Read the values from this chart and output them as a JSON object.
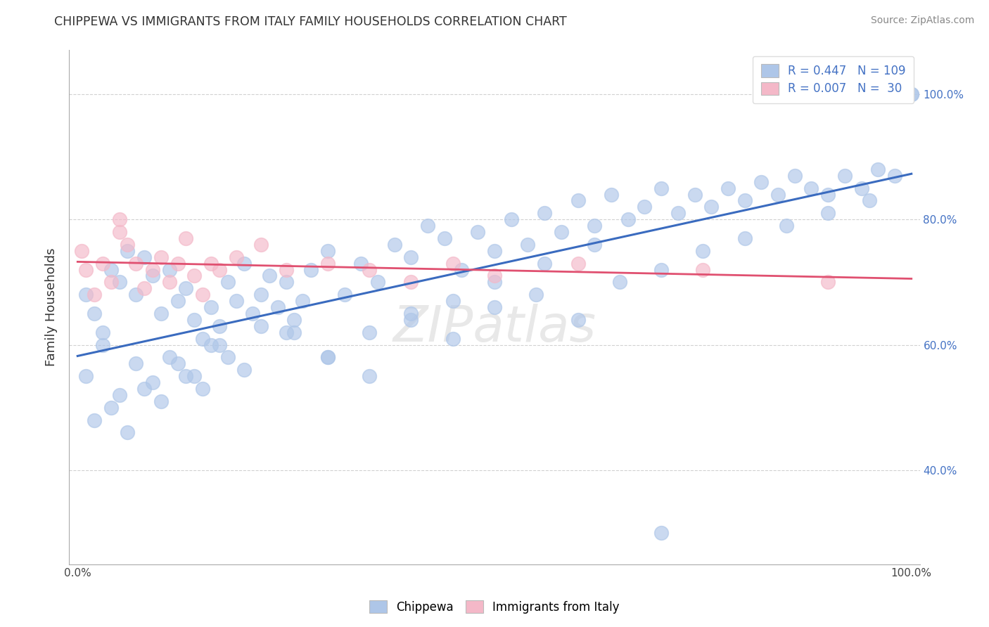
{
  "title": "CHIPPEWA VS IMMIGRANTS FROM ITALY FAMILY HOUSEHOLDS CORRELATION CHART",
  "source_text": "Source: ZipAtlas.com",
  "ylabel": "Family Households",
  "blue_scatter_color": "#aec6e8",
  "pink_scatter_color": "#f4b8c8",
  "blue_line_color": "#3a6bbf",
  "pink_line_color": "#e05070",
  "grid_color": "#cccccc",
  "blue_R": 0.447,
  "blue_N": 109,
  "pink_R": 0.007,
  "pink_N": 30,
  "legend_text_color": "#4472c4",
  "bottom_legend": [
    "Chippewa",
    "Immigrants from Italy"
  ],
  "xlim_min": 0,
  "xlim_max": 100,
  "ylim_min": 25,
  "ylim_max": 107,
  "yticks": [
    40,
    60,
    80,
    100
  ],
  "xticks": [
    0,
    100
  ],
  "blue_x": [
    1,
    2,
    3,
    4,
    5,
    6,
    7,
    8,
    9,
    10,
    11,
    12,
    13,
    14,
    15,
    16,
    17,
    18,
    19,
    20,
    21,
    22,
    23,
    24,
    25,
    26,
    27,
    28,
    30,
    32,
    34,
    36,
    38,
    40,
    42,
    44,
    46,
    48,
    50,
    52,
    54,
    56,
    58,
    60,
    62,
    64,
    66,
    68,
    70,
    72,
    74,
    76,
    78,
    80,
    82,
    84,
    86,
    88,
    90,
    92,
    94,
    96,
    98,
    100,
    1,
    3,
    5,
    7,
    9,
    11,
    13,
    15,
    17,
    20,
    25,
    30,
    35,
    40,
    45,
    50,
    55,
    60,
    65,
    70,
    75,
    80,
    85,
    90,
    95,
    100,
    2,
    4,
    6,
    8,
    10,
    12,
    14,
    16,
    18,
    22,
    26,
    30,
    35,
    40,
    45,
    50,
    56,
    62,
    70
  ],
  "blue_y": [
    68,
    65,
    62,
    72,
    70,
    75,
    68,
    74,
    71,
    65,
    72,
    67,
    69,
    64,
    61,
    66,
    63,
    70,
    67,
    73,
    65,
    68,
    71,
    66,
    70,
    64,
    67,
    72,
    75,
    68,
    73,
    70,
    76,
    74,
    79,
    77,
    72,
    78,
    75,
    80,
    76,
    81,
    78,
    83,
    79,
    84,
    80,
    82,
    85,
    81,
    84,
    82,
    85,
    83,
    86,
    84,
    87,
    85,
    84,
    87,
    85,
    88,
    87,
    100,
    55,
    60,
    52,
    57,
    54,
    58,
    55,
    53,
    60,
    56,
    62,
    58,
    55,
    64,
    61,
    66,
    68,
    64,
    70,
    72,
    75,
    77,
    79,
    81,
    83,
    100,
    48,
    50,
    46,
    53,
    51,
    57,
    55,
    60,
    58,
    63,
    62,
    58,
    62,
    65,
    67,
    70,
    73,
    76,
    30
  ],
  "pink_x": [
    0.5,
    1,
    2,
    3,
    4,
    5,
    5,
    6,
    7,
    8,
    9,
    10,
    11,
    12,
    13,
    14,
    15,
    16,
    17,
    19,
    22,
    25,
    30,
    35,
    40,
    45,
    50,
    60,
    75,
    90
  ],
  "pink_y": [
    75,
    72,
    68,
    73,
    70,
    78,
    80,
    76,
    73,
    69,
    72,
    74,
    70,
    73,
    77,
    71,
    68,
    73,
    72,
    74,
    76,
    72,
    73,
    72,
    70,
    73,
    71,
    73,
    72,
    70
  ]
}
